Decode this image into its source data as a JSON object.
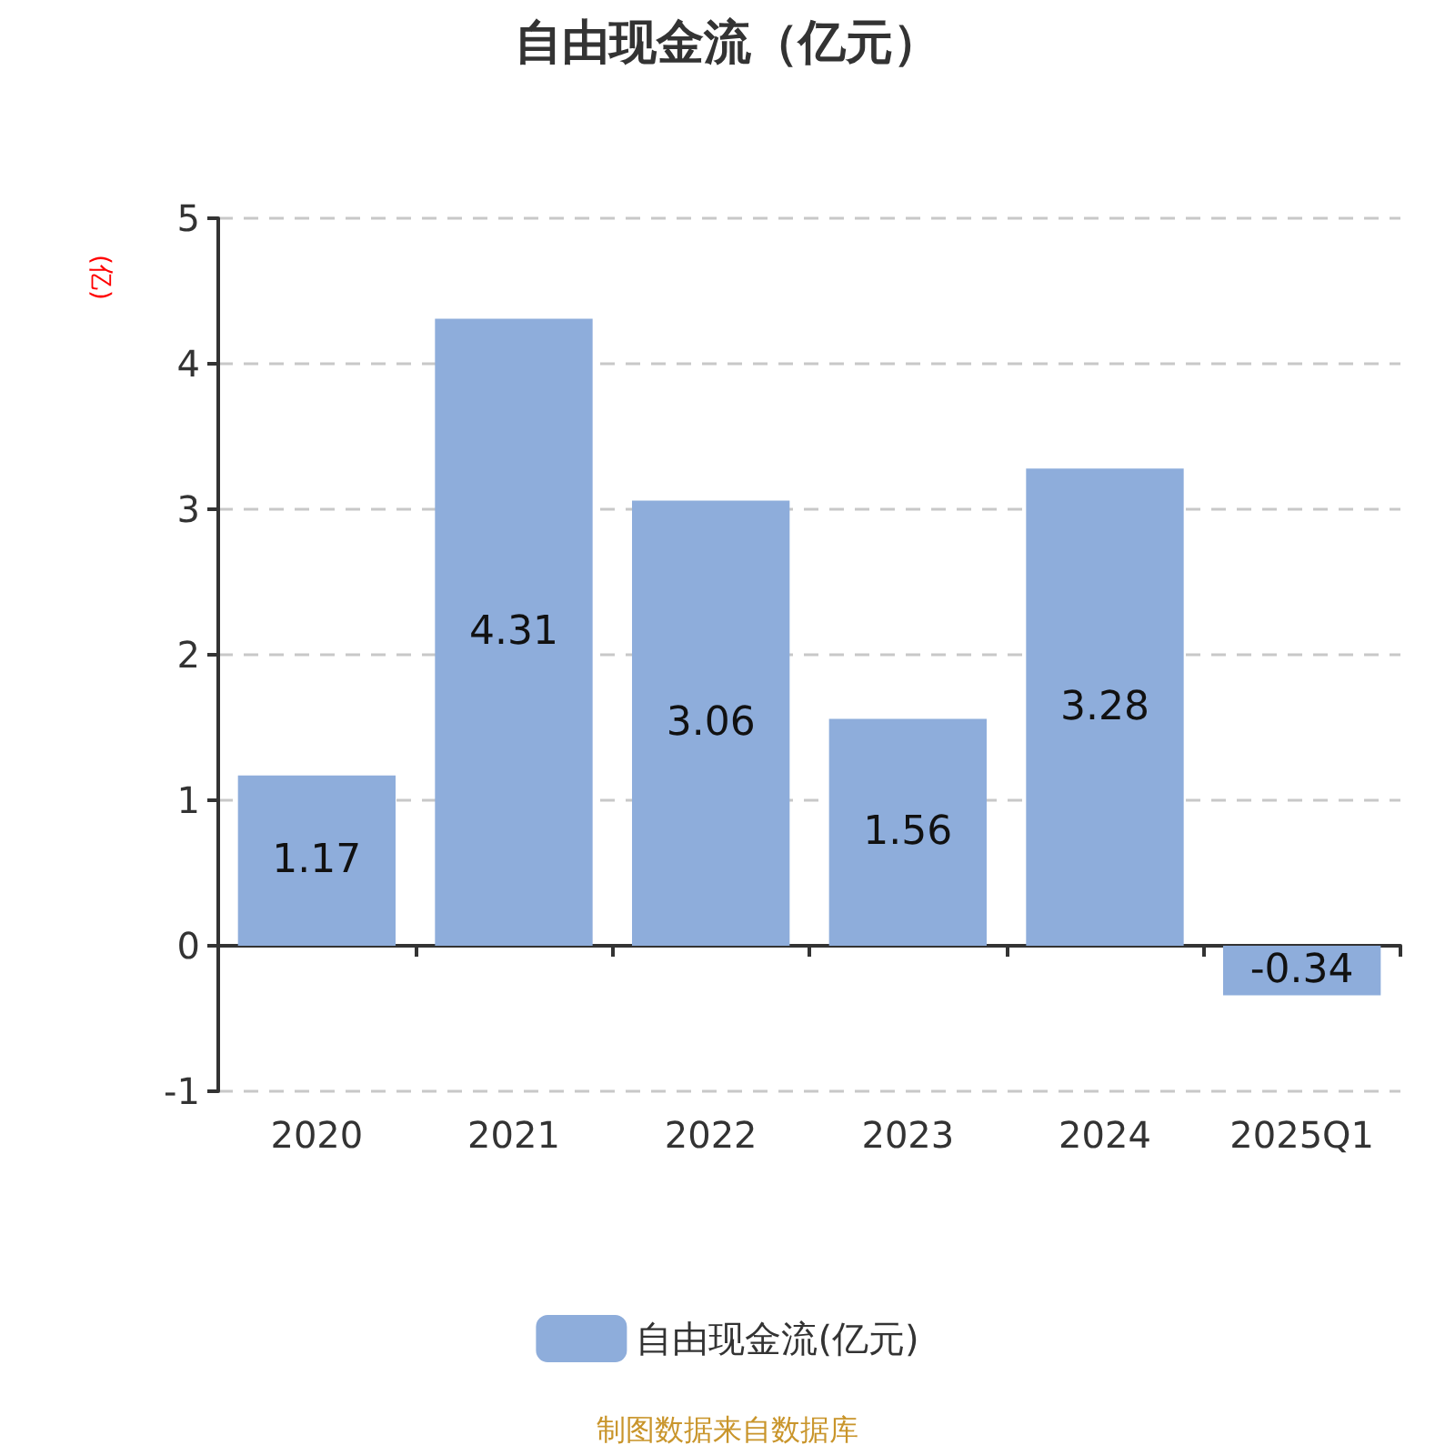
{
  "chart_data": {
    "type": "bar",
    "title": "自由现金流（亿元）",
    "ylabel": "(亿)",
    "categories": [
      "2020",
      "2021",
      "2022",
      "2023",
      "2024",
      "2025Q1"
    ],
    "series": [
      {
        "name": "自由现金流(亿元)",
        "color": "#8eaddb",
        "values": [
          1.17,
          4.31,
          3.06,
          1.56,
          3.28,
          -0.34
        ]
      }
    ],
    "ylim": [
      -1,
      5
    ],
    "yticks": [
      -1,
      0,
      1,
      2,
      3,
      4,
      5
    ],
    "grid": "y",
    "legend": "bottom",
    "data_labels": true,
    "annotations": [
      "制图数据来自数据库"
    ]
  }
}
